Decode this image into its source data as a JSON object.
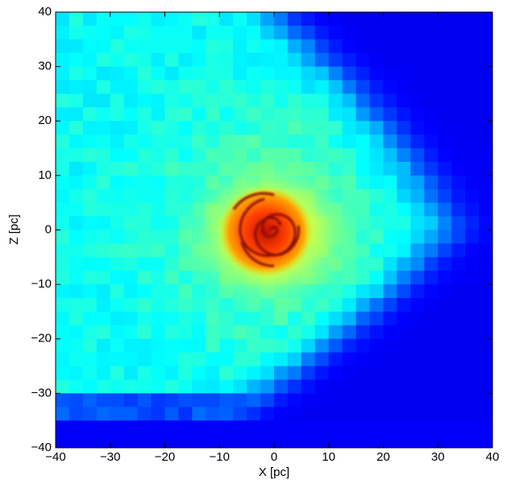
{
  "chart_data": {
    "type": "image",
    "xlabel": "X [pc]",
    "ylabel": "Z [pc]",
    "xlim": [
      -40,
      40
    ],
    "ylim": [
      -40,
      40
    ],
    "xticks": [
      {
        "value": -40,
        "label": "−40"
      },
      {
        "value": -30,
        "label": "−30"
      },
      {
        "value": -20,
        "label": "−20"
      },
      {
        "value": -10,
        "label": "−10"
      },
      0,
      10,
      20,
      30,
      40
    ],
    "yticks": [
      {
        "value": -40,
        "label": "−40"
      },
      {
        "value": -30,
        "label": "−30"
      },
      {
        "value": -20,
        "label": "−20"
      },
      {
        "value": -10,
        "label": "−10"
      },
      0,
      10,
      20,
      30,
      40
    ]
  }
}
